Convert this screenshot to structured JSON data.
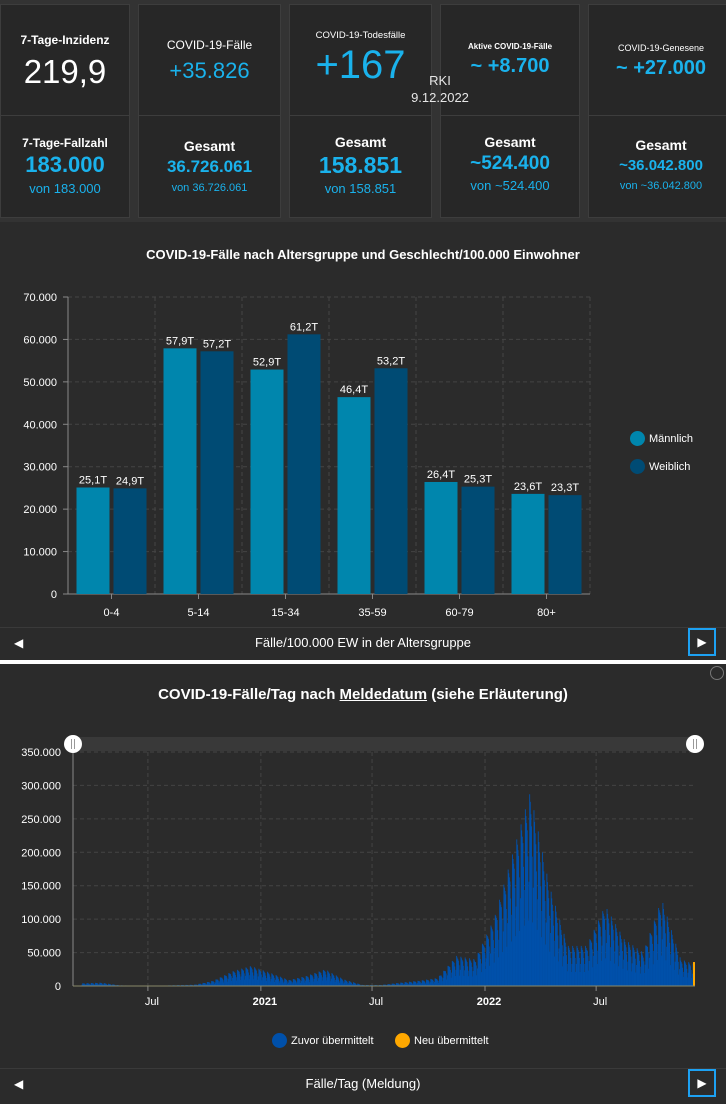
{
  "stats": {
    "inzidenz": {
      "label": "7-Tage-Inzidenz",
      "value": "219,9"
    },
    "faelle": {
      "label": "COVID-19-Fälle",
      "value": "+35.826"
    },
    "todesfaelle": {
      "label": "COVID-19-Todesfälle",
      "value": "+167"
    },
    "aktive": {
      "label": "Aktive COVID-19-Fälle",
      "value": "~ +8.700"
    },
    "genesene": {
      "label": "COVID-19-Genesene",
      "value": "~ +27.000"
    },
    "fallzahl": {
      "label": "7-Tage-Fallzahl",
      "value": "183.000",
      "sub": "von 183.000"
    },
    "faelle_gesamt": {
      "label": "Gesamt",
      "value": "36.726.061",
      "sub": "von 36.726.061"
    },
    "todesfaelle_gesamt": {
      "label": "Gesamt",
      "value": "158.851",
      "sub": "von 158.851"
    },
    "aktive_gesamt": {
      "label": "Gesamt",
      "value": "~524.400",
      "sub": "von ~524.400"
    },
    "genesene_gesamt": {
      "label": "Gesamt",
      "value": "~36.042.800",
      "sub": "von ~36.042.800"
    },
    "source": "RKI",
    "date": "9.12.2022"
  },
  "chart1": {
    "nav_label": "Fälle/100.000 EW in der Altersgruppe",
    "nav_prev": "◀",
    "nav_next": "▶"
  },
  "chart2": {
    "title_prefix": "COVID-19-Fälle/Tag nach ",
    "title_link": "Meldedatum",
    "title_suffix": " (siehe Erläuterung)",
    "nav_label": "Fälle/Tag (Meldung)",
    "nav_prev": "◀",
    "nav_next": "▶"
  },
  "colors": {
    "accent": "#1ab2ec",
    "maennlich": "#0086ad",
    "weiblich": "#004b74",
    "zuvor": "#0050aa",
    "neu": "#ffa800"
  },
  "chart_data": [
    {
      "type": "bar",
      "title": "COVID-19-Fälle nach Altersgruppe und Geschlecht/100.000 Einwohner",
      "xlabel": "Fälle/100.000 EW in der Altersgruppe",
      "ylabel": "",
      "categories": [
        "0-4",
        "5-14",
        "15-34",
        "35-59",
        "60-79",
        "80+"
      ],
      "series": [
        {
          "name": "Männlich",
          "values": [
            25100,
            57900,
            52900,
            46400,
            26400,
            23600
          ],
          "labels": [
            "25,1T",
            "57,9T",
            "52,9T",
            "46,4T",
            "26,4T",
            "23,6T"
          ]
        },
        {
          "name": "Weiblich",
          "values": [
            24900,
            57200,
            61200,
            53200,
            25300,
            23300
          ],
          "labels": [
            "24,9T",
            "57,2T",
            "61,2T",
            "53,2T",
            "25,3T",
            "23,3T"
          ]
        }
      ],
      "ylim": [
        0,
        70000
      ],
      "yticks": [
        "0",
        "10.000",
        "20.000",
        "30.000",
        "40.000",
        "50.000",
        "60.000",
        "70.000"
      ],
      "grid": true,
      "legend": "right"
    },
    {
      "type": "bar",
      "title": "COVID-19-Fälle/Tag nach Meldedatum (siehe Erläuterung)",
      "xlabel": "Fälle/Tag (Meldung)",
      "ylabel": "",
      "xlim": [
        "2020-03",
        "2022-12-09"
      ],
      "xticks": [
        "Jul",
        "2021",
        "Jul",
        "2022",
        "Jul"
      ],
      "ylim": [
        0,
        350000
      ],
      "yticks": [
        "0",
        "50.000",
        "100.000",
        "150.000",
        "200.000",
        "250.000",
        "300.000",
        "350.000"
      ],
      "grid": true,
      "legend": "bottom",
      "series": [
        {
          "name": "Zuvor übermittelt",
          "x": [
            "2020-03",
            "2020-04",
            "2020-05",
            "2020-06",
            "2020-07",
            "2020-08",
            "2020-09",
            "2020-10",
            "2020-11",
            "2020-12",
            "2021-01",
            "2021-02",
            "2021-03",
            "2021-04",
            "2021-05",
            "2021-06",
            "2021-07",
            "2021-08",
            "2021-09",
            "2021-10",
            "2021-11",
            "2021-12",
            "2022-01",
            "2022-02",
            "2022-03",
            "2022-04",
            "2022-05",
            "2022-06",
            "2022-07",
            "2022-08",
            "2022-09",
            "2022-10",
            "2022-11",
            "2022-12"
          ],
          "values": [
            4000,
            5000,
            1000,
            500,
            500,
            1200,
            2000,
            8000,
            22000,
            30000,
            20000,
            9000,
            15000,
            25000,
            10000,
            1500,
            1500,
            5000,
            8000,
            12000,
            45000,
            40000,
            100000,
            200000,
            290000,
            150000,
            60000,
            60000,
            120000,
            70000,
            50000,
            130000,
            40000,
            30000
          ]
        },
        {
          "name": "Neu übermittelt",
          "x": [
            "2022-12-09"
          ],
          "values": [
            35826
          ]
        }
      ]
    }
  ]
}
